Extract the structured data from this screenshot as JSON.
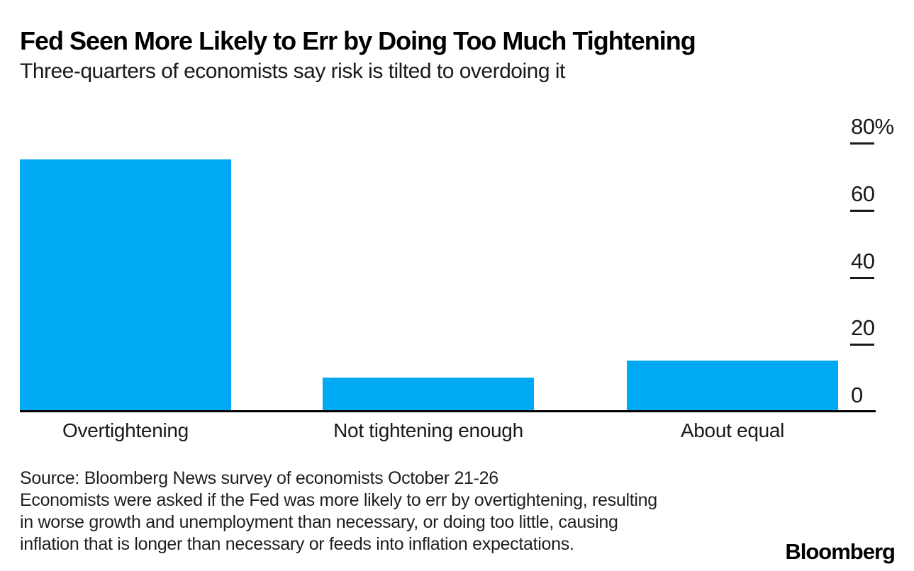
{
  "chart_data": {
    "type": "bar",
    "title": "Fed Seen More Likely to Err by Doing Too Much Tightening",
    "subtitle": "Three-quarters of economists say risk is tilted to overdoing it",
    "categories": [
      "Overtightening",
      "Not tightening enough",
      "About equal"
    ],
    "values": [
      75,
      10,
      15
    ],
    "unit": "%",
    "ylim": [
      0,
      80
    ],
    "yticks": [
      {
        "label": "80%",
        "value": 80
      },
      {
        "label": "60",
        "value": 60
      },
      {
        "label": "40",
        "value": 40
      },
      {
        "label": "20",
        "value": 20
      },
      {
        "label": "0",
        "value": 0
      }
    ],
    "axis_side": "right",
    "grid": false,
    "legend": false,
    "bar_color": "#00A9F4",
    "axis_color": "#000000"
  },
  "footer": {
    "source": "Source: Bloomberg News survey of economists October 21-26",
    "note_lines": [
      "Economists were asked if the Fed was more likely to err by overtightening, resulting",
      "in worse growth and unemployment than necessary, or doing too little, causing",
      "inflation that is longer than necessary or feeds into inflation expectations."
    ],
    "brand": "Bloomberg"
  }
}
